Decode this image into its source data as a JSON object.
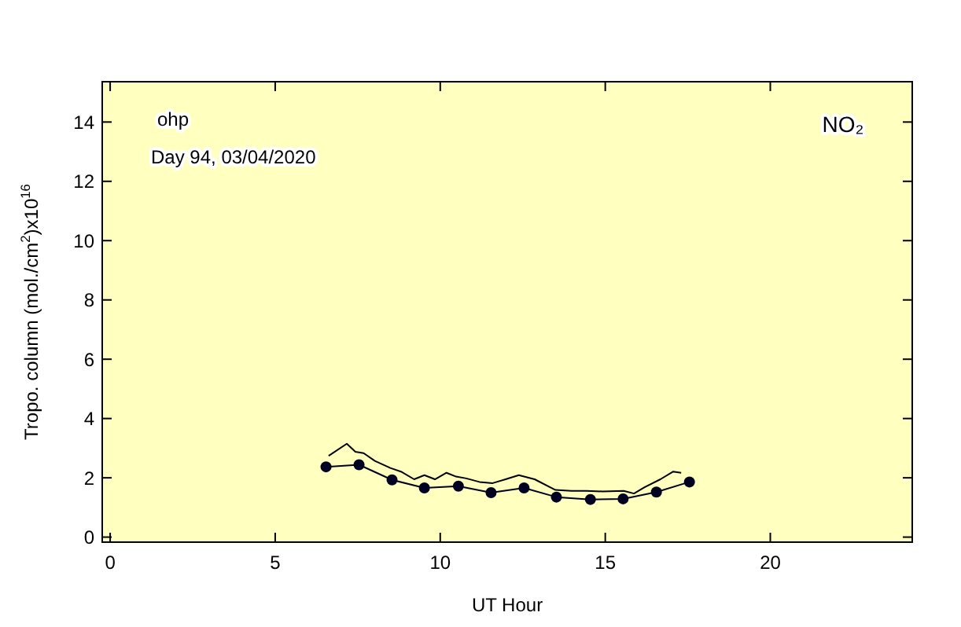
{
  "chart_data": {
    "type": "line",
    "xlabel": "UT Hour",
    "ylabel": "Tropo. column (mol./cm$^{2}$)x10$^{16}$",
    "annotations": [
      "ohp",
      "Day 94, 03/04/2020",
      "NO₂"
    ],
    "xlim": [
      -0.24,
      24.3
    ],
    "ylim": [
      -0.17,
      15.36
    ],
    "xticks": [
      0,
      5,
      10,
      15,
      20
    ],
    "yticks": [
      0,
      2,
      4,
      6,
      8,
      10,
      12,
      14
    ],
    "grid": false,
    "series": [
      {
        "color": "#000000",
        "marker": "none",
        "x": [
          6.62,
          7.17,
          7.43,
          7.68,
          8.02,
          8.49,
          8.81,
          9.21,
          9.52,
          9.84,
          10.19,
          10.48,
          10.79,
          11.19,
          11.59,
          11.98,
          12.38,
          12.86,
          13.49,
          13.97,
          14.44,
          14.92,
          15.56,
          15.87,
          16.19,
          16.67,
          17.06,
          17.3
        ],
        "values": [
          2.74,
          3.15,
          2.88,
          2.83,
          2.57,
          2.33,
          2.21,
          1.95,
          2.09,
          1.95,
          2.17,
          2.04,
          1.98,
          1.86,
          1.82,
          1.95,
          2.09,
          1.95,
          1.59,
          1.56,
          1.56,
          1.54,
          1.56,
          1.47,
          1.68,
          1.95,
          2.21,
          2.17
        ]
      },
      {
        "color": "#000020",
        "marker": "circle",
        "x": [
          6.54,
          7.54,
          8.54,
          9.52,
          10.55,
          11.54,
          12.54,
          13.52,
          14.55,
          15.54,
          16.55,
          17.55
        ],
        "values": [
          2.37,
          2.44,
          1.93,
          1.66,
          1.72,
          1.5,
          1.66,
          1.35,
          1.27,
          1.29,
          1.52,
          1.86
        ]
      }
    ]
  }
}
